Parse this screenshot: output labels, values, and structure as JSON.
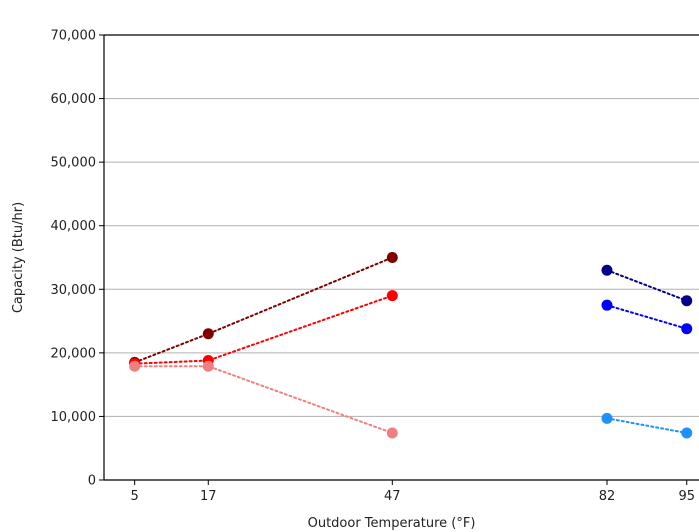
{
  "chart_data": {
    "type": "line",
    "title": "",
    "xlabel": "Outdoor Temperature (°F)",
    "ylabel": "Capacity (Btu/hr)",
    "xlim": [
      0,
      97
    ],
    "ylim": [
      0,
      70000
    ],
    "x_ticks": [
      5,
      17,
      47,
      82,
      95
    ],
    "x_tick_labels": [
      "5",
      "17",
      "47",
      "82",
      "95"
    ],
    "y_ticks": [
      0,
      10000,
      20000,
      30000,
      40000,
      50000,
      60000,
      70000
    ],
    "y_tick_labels": [
      "0",
      "10,000",
      "20,000",
      "30,000",
      "40,000",
      "50,000",
      "60,000",
      "70,000"
    ],
    "grid": "horizontal",
    "line_style": "dotted",
    "series": [
      {
        "color": "#800000",
        "points": [
          [
            5,
            18500
          ],
          [
            17,
            23000
          ],
          [
            47,
            35000
          ]
        ]
      },
      {
        "color": "#ff0000",
        "points": [
          [
            5,
            18300
          ],
          [
            17,
            18800
          ],
          [
            47,
            29000
          ]
        ]
      },
      {
        "color": "#f08080",
        "points": [
          [
            5,
            17900
          ],
          [
            17,
            17900
          ],
          [
            47,
            7400
          ]
        ]
      },
      {
        "color": "#00008b",
        "points": [
          [
            82,
            33000
          ],
          [
            95,
            28200
          ]
        ]
      },
      {
        "color": "#0000ff",
        "points": [
          [
            82,
            27500
          ],
          [
            95,
            23800
          ]
        ]
      },
      {
        "color": "#1e90ff",
        "points": [
          [
            82,
            9700
          ],
          [
            95,
            7400
          ]
        ]
      }
    ]
  }
}
